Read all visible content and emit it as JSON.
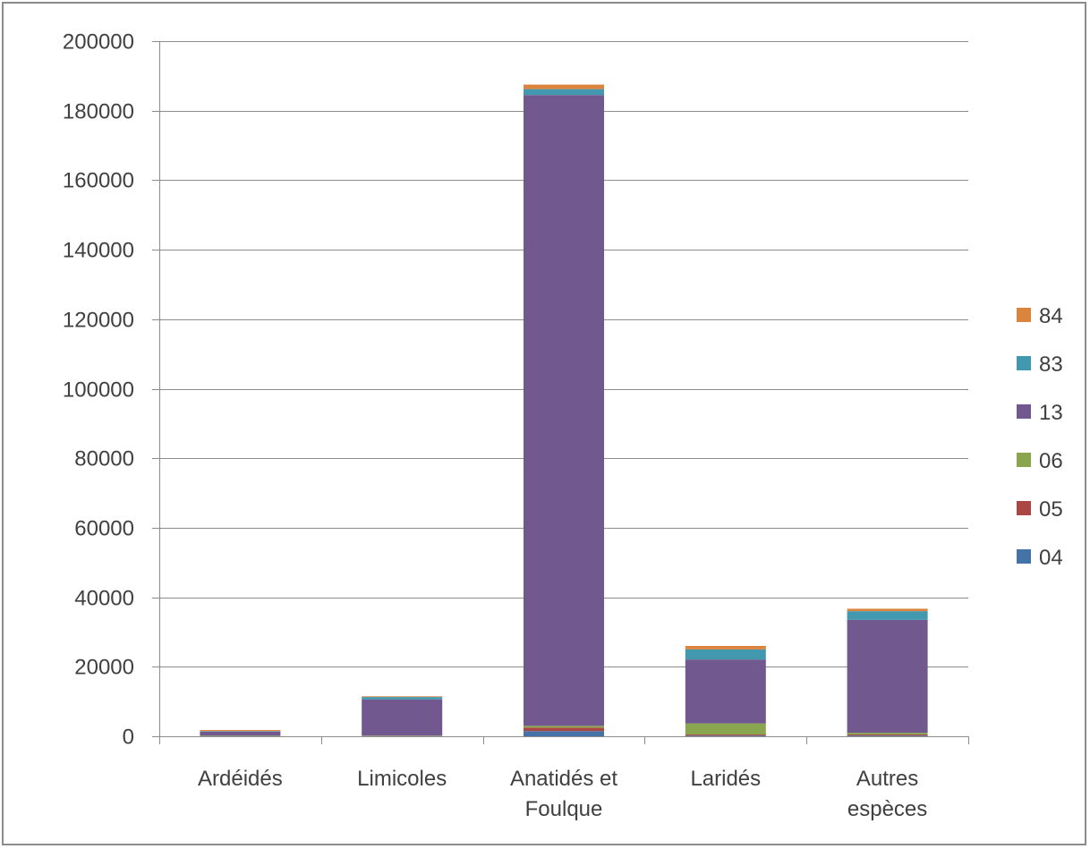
{
  "chart_data": {
    "type": "bar",
    "stacked": true,
    "title": "",
    "xlabel": "",
    "ylabel": "",
    "ylim": [
      0,
      200000
    ],
    "yticks": [
      0,
      20000,
      40000,
      60000,
      80000,
      100000,
      120000,
      140000,
      160000,
      180000,
      200000
    ],
    "grid": true,
    "legend_position": "right",
    "categories": [
      [
        "Ardéidés"
      ],
      [
        "Limicoles"
      ],
      [
        "Anatidés et",
        "Foulque"
      ],
      [
        "Laridés"
      ],
      [
        "Autres",
        "espèces"
      ]
    ],
    "series": [
      {
        "name": "04",
        "color": "#4572a7",
        "values": [
          100,
          50,
          1500,
          200,
          200
        ]
      },
      {
        "name": "05",
        "color": "#aa4643",
        "values": [
          50,
          50,
          1000,
          300,
          300
        ]
      },
      {
        "name": "06",
        "color": "#89a54e",
        "values": [
          100,
          100,
          500,
          3200,
          500
        ]
      },
      {
        "name": "13",
        "color": "#71588f",
        "values": [
          1100,
          10400,
          181500,
          18400,
          32500
        ]
      },
      {
        "name": "83",
        "color": "#4198af",
        "values": [
          150,
          700,
          1700,
          2900,
          2500
        ]
      },
      {
        "name": "84",
        "color": "#db843d",
        "values": [
          300,
          200,
          1300,
          1000,
          700
        ]
      }
    ]
  }
}
